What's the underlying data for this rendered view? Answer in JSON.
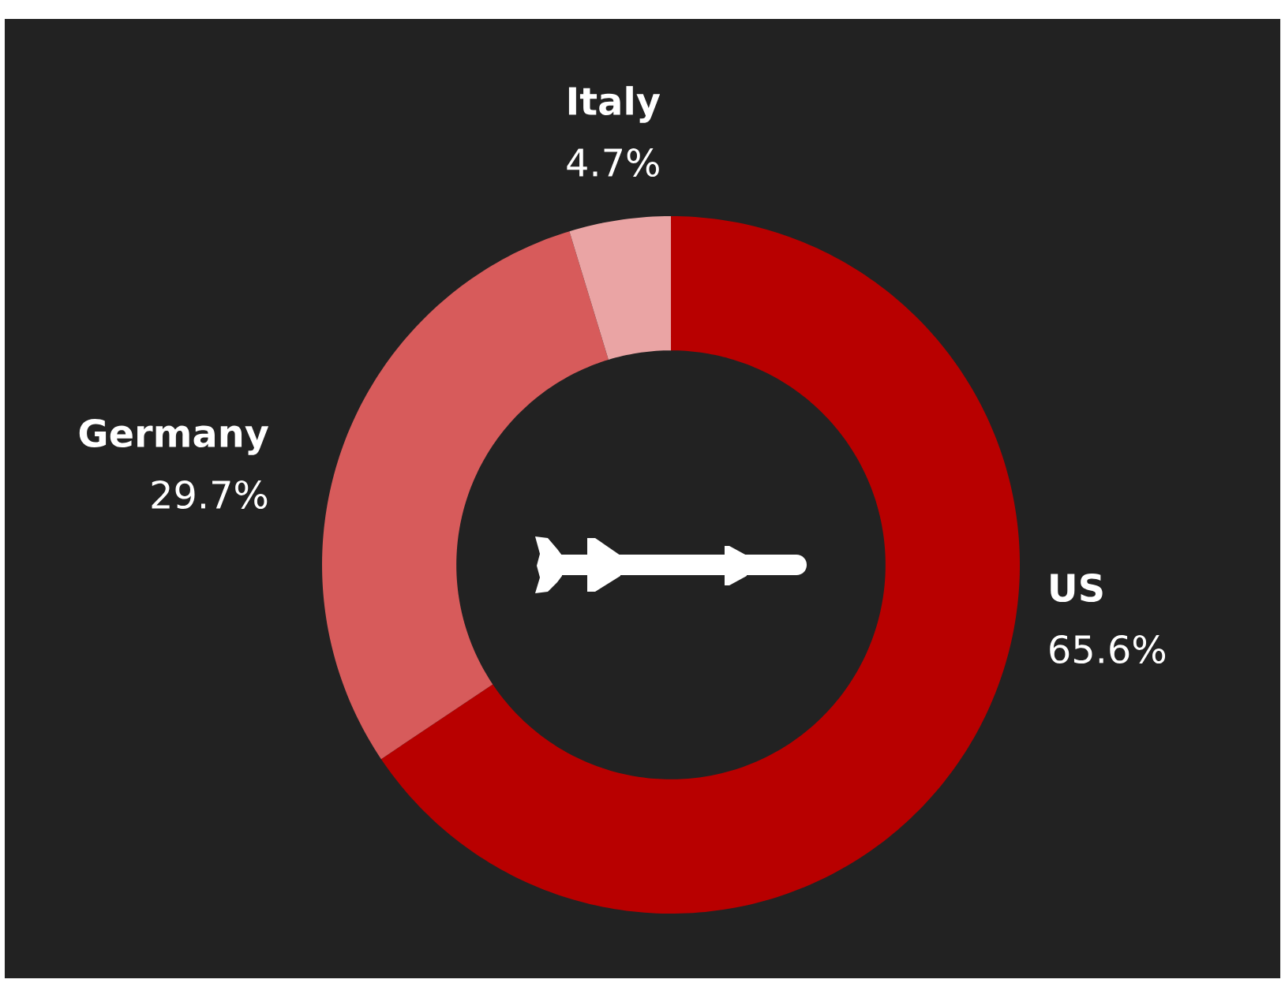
{
  "chart_data": {
    "type": "donut",
    "categories": [
      "US",
      "Germany",
      "Italy"
    ],
    "values": [
      65.6,
      29.7,
      4.7
    ],
    "colors": [
      "#b80000",
      "#d75b5b",
      "#eaa4a4"
    ],
    "value_labels": [
      "65.6%",
      "29.7%",
      "4.7%"
    ]
  }
}
